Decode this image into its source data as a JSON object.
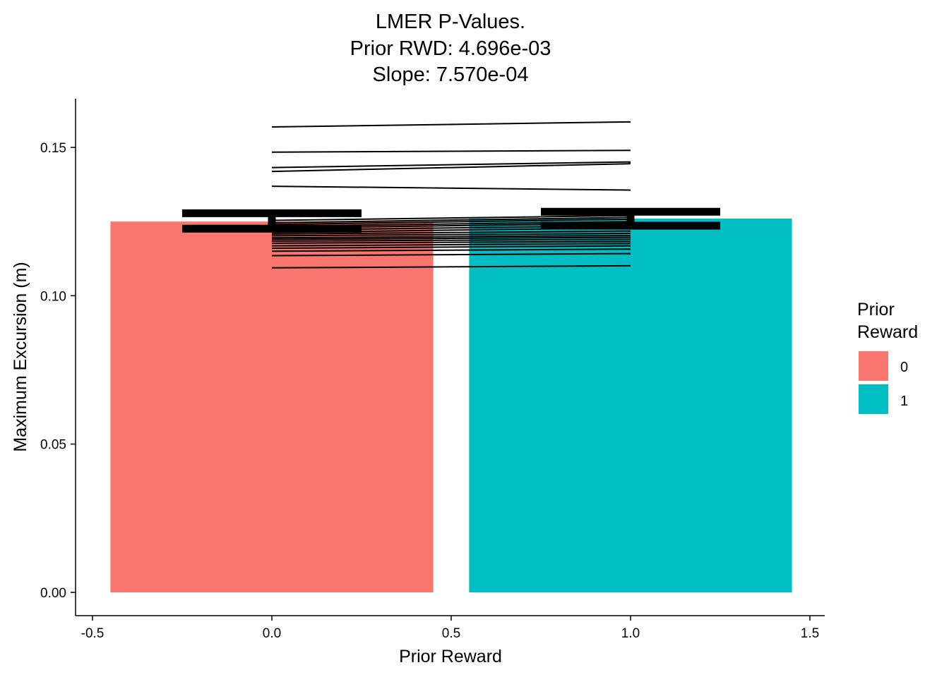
{
  "chart_data": {
    "type": "bar",
    "title_lines": [
      "LMER P-Values.",
      "Prior RWD:  4.696e-03",
      "Slope:  7.570e-04"
    ],
    "xlabel": "Prior Reward",
    "ylabel": "Maximum Excursion (m)",
    "xlim": [
      -0.5,
      1.5
    ],
    "ylim": [
      0,
      0.165
    ],
    "xticks": [
      -0.5,
      0.0,
      0.5,
      1.0,
      1.5
    ],
    "xtick_labels": [
      "-0.5",
      "0.0",
      "0.5",
      "1.0",
      "1.5"
    ],
    "yticks": [
      0.0,
      0.05,
      0.1,
      0.15
    ],
    "ytick_labels": [
      "0.00",
      "0.05",
      "0.10",
      "0.15"
    ],
    "grid": false,
    "bar_width": 0.9,
    "bars": [
      {
        "x": 0,
        "value": 0.125,
        "group": "0",
        "color": "#F8766D"
      },
      {
        "x": 1,
        "value": 0.126,
        "group": "1",
        "color": "#00BFC4"
      }
    ],
    "error_bars": [
      {
        "x": 0,
        "low": 0.1226,
        "high": 0.1278,
        "halfwidth": 0.25
      },
      {
        "x": 1,
        "low": 0.1236,
        "high": 0.1283,
        "halfwidth": 0.25
      }
    ],
    "subject_lines": [
      {
        "y0": 0.1569,
        "y1": 0.1586
      },
      {
        "y0": 0.1484,
        "y1": 0.149
      },
      {
        "y0": 0.1432,
        "y1": 0.1451
      },
      {
        "y0": 0.1419,
        "y1": 0.1445
      },
      {
        "y0": 0.1369,
        "y1": 0.1356
      },
      {
        "y0": 0.1254,
        "y1": 0.127
      },
      {
        "y0": 0.1246,
        "y1": 0.1264
      },
      {
        "y0": 0.124,
        "y1": 0.1258
      },
      {
        "y0": 0.1234,
        "y1": 0.125
      },
      {
        "y0": 0.1228,
        "y1": 0.1244
      },
      {
        "y0": 0.1221,
        "y1": 0.1236
      },
      {
        "y0": 0.1213,
        "y1": 0.1229
      },
      {
        "y0": 0.1208,
        "y1": 0.1218
      },
      {
        "y0": 0.1202,
        "y1": 0.121
      },
      {
        "y0": 0.1195,
        "y1": 0.1203
      },
      {
        "y0": 0.119,
        "y1": 0.1197
      },
      {
        "y0": 0.1184,
        "y1": 0.119
      },
      {
        "y0": 0.1177,
        "y1": 0.1183
      },
      {
        "y0": 0.1168,
        "y1": 0.1176
      },
      {
        "y0": 0.116,
        "y1": 0.1168
      },
      {
        "y0": 0.115,
        "y1": 0.1157
      },
      {
        "y0": 0.1135,
        "y1": 0.1142
      },
      {
        "y0": 0.1094,
        "y1": 0.1101
      }
    ],
    "legend": {
      "title_lines": [
        "Prior",
        "Reward"
      ],
      "position": "right",
      "entries": [
        {
          "label": "0",
          "color": "#F8766D"
        },
        {
          "label": "1",
          "color": "#00BFC4"
        }
      ]
    }
  }
}
